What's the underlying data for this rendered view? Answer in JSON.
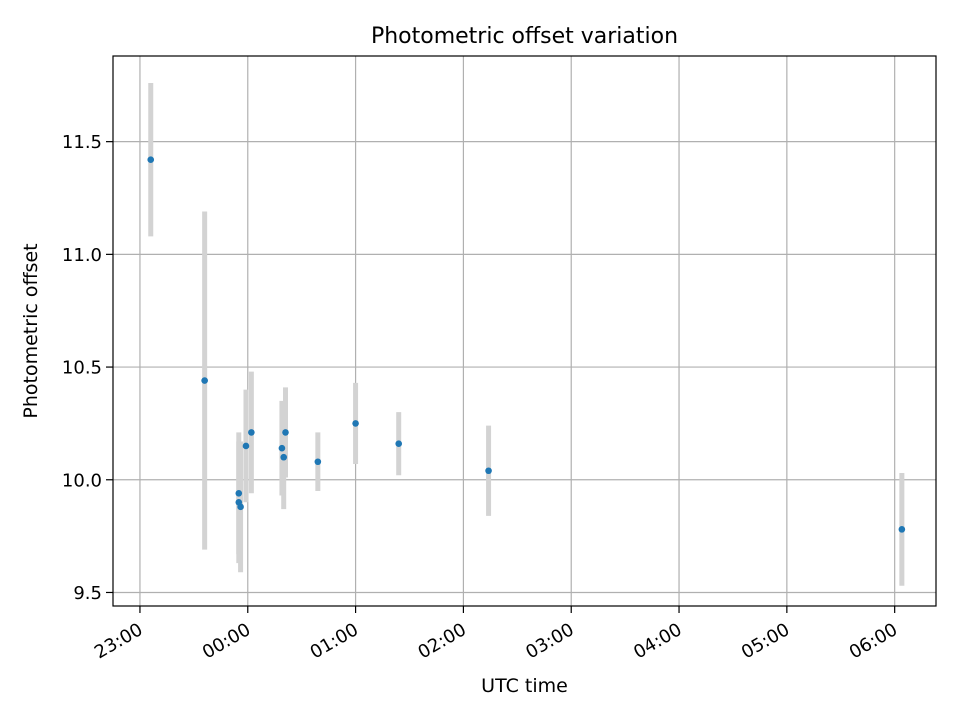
{
  "chart_data": {
    "type": "scatter",
    "title": "Photometric offset variation",
    "xlabel": "UTC time",
    "ylabel": "Photometric offset",
    "x_ticks": [
      "23:00",
      "00:00",
      "01:00",
      "02:00",
      "03:00",
      "04:00",
      "05:00",
      "06:00"
    ],
    "y_ticks": [
      "9.5",
      "10.0",
      "10.5",
      "11.0",
      "11.5"
    ],
    "xlim_minutes_from_2300": [
      -15,
      443
    ],
    "ylim": [
      9.44,
      11.88
    ],
    "grid": true,
    "point_color": "#1f77b4",
    "errorbar_color": "#d3d3d3",
    "points": [
      {
        "x": "23:06",
        "y": 11.42,
        "err": 0.34
      },
      {
        "x": "23:36",
        "y": 10.44,
        "err": 0.75
      },
      {
        "x": "23:55",
        "y": 9.94,
        "err": 0.27
      },
      {
        "x": "23:55",
        "y": 9.9,
        "err": 0.27
      },
      {
        "x": "23:56",
        "y": 9.88,
        "err": 0.29
      },
      {
        "x": "23:59",
        "y": 10.15,
        "err": 0.25
      },
      {
        "x": "00:02",
        "y": 10.21,
        "err": 0.27
      },
      {
        "x": "00:19",
        "y": 10.14,
        "err": 0.21
      },
      {
        "x": "00:20",
        "y": 10.1,
        "err": 0.23
      },
      {
        "x": "00:21",
        "y": 10.21,
        "err": 0.2
      },
      {
        "x": "00:39",
        "y": 10.08,
        "err": 0.13
      },
      {
        "x": "01:00",
        "y": 10.25,
        "err": 0.18
      },
      {
        "x": "01:24",
        "y": 10.16,
        "err": 0.14
      },
      {
        "x": "02:14",
        "y": 10.04,
        "err": 0.2
      },
      {
        "x": "06:04",
        "y": 9.78,
        "err": 0.25
      }
    ]
  }
}
